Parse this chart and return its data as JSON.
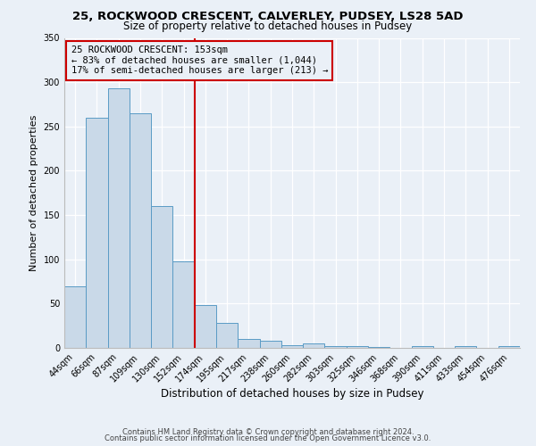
{
  "title1": "25, ROCKWOOD CRESCENT, CALVERLEY, PUDSEY, LS28 5AD",
  "title2": "Size of property relative to detached houses in Pudsey",
  "xlabel": "Distribution of detached houses by size in Pudsey",
  "ylabel": "Number of detached properties",
  "bar_labels": [
    "44sqm",
    "66sqm",
    "87sqm",
    "109sqm",
    "130sqm",
    "152sqm",
    "174sqm",
    "195sqm",
    "217sqm",
    "238sqm",
    "260sqm",
    "282sqm",
    "303sqm",
    "325sqm",
    "346sqm",
    "368sqm",
    "390sqm",
    "411sqm",
    "433sqm",
    "454sqm",
    "476sqm"
  ],
  "bar_values": [
    70,
    260,
    293,
    265,
    160,
    98,
    48,
    28,
    10,
    8,
    3,
    5,
    2,
    2,
    1,
    0,
    2,
    0,
    2,
    0,
    2
  ],
  "bar_color": "#c9d9e8",
  "bar_edge_color": "#5a9bc5",
  "vline_color": "#cc0000",
  "vline_x": 5.5,
  "annotation_title": "25 ROCKWOOD CRESCENT: 153sqm",
  "annotation_line2": "← 83% of detached houses are smaller (1,044)",
  "annotation_line3": "17% of semi-detached houses are larger (213) →",
  "annotation_box_color": "#cc0000",
  "ylim": [
    0,
    350
  ],
  "yticks": [
    0,
    50,
    100,
    150,
    200,
    250,
    300,
    350
  ],
  "footer1": "Contains HM Land Registry data © Crown copyright and database right 2024.",
  "footer2": "Contains public sector information licensed under the Open Government Licence v3.0.",
  "bg_color": "#eaf0f7",
  "grid_color": "#ffffff",
  "title1_fontsize": 9.5,
  "title2_fontsize": 8.5,
  "ylabel_fontsize": 8,
  "xlabel_fontsize": 8.5,
  "tick_fontsize": 7,
  "ann_fontsize": 7.5,
  "footer_fontsize": 6
}
